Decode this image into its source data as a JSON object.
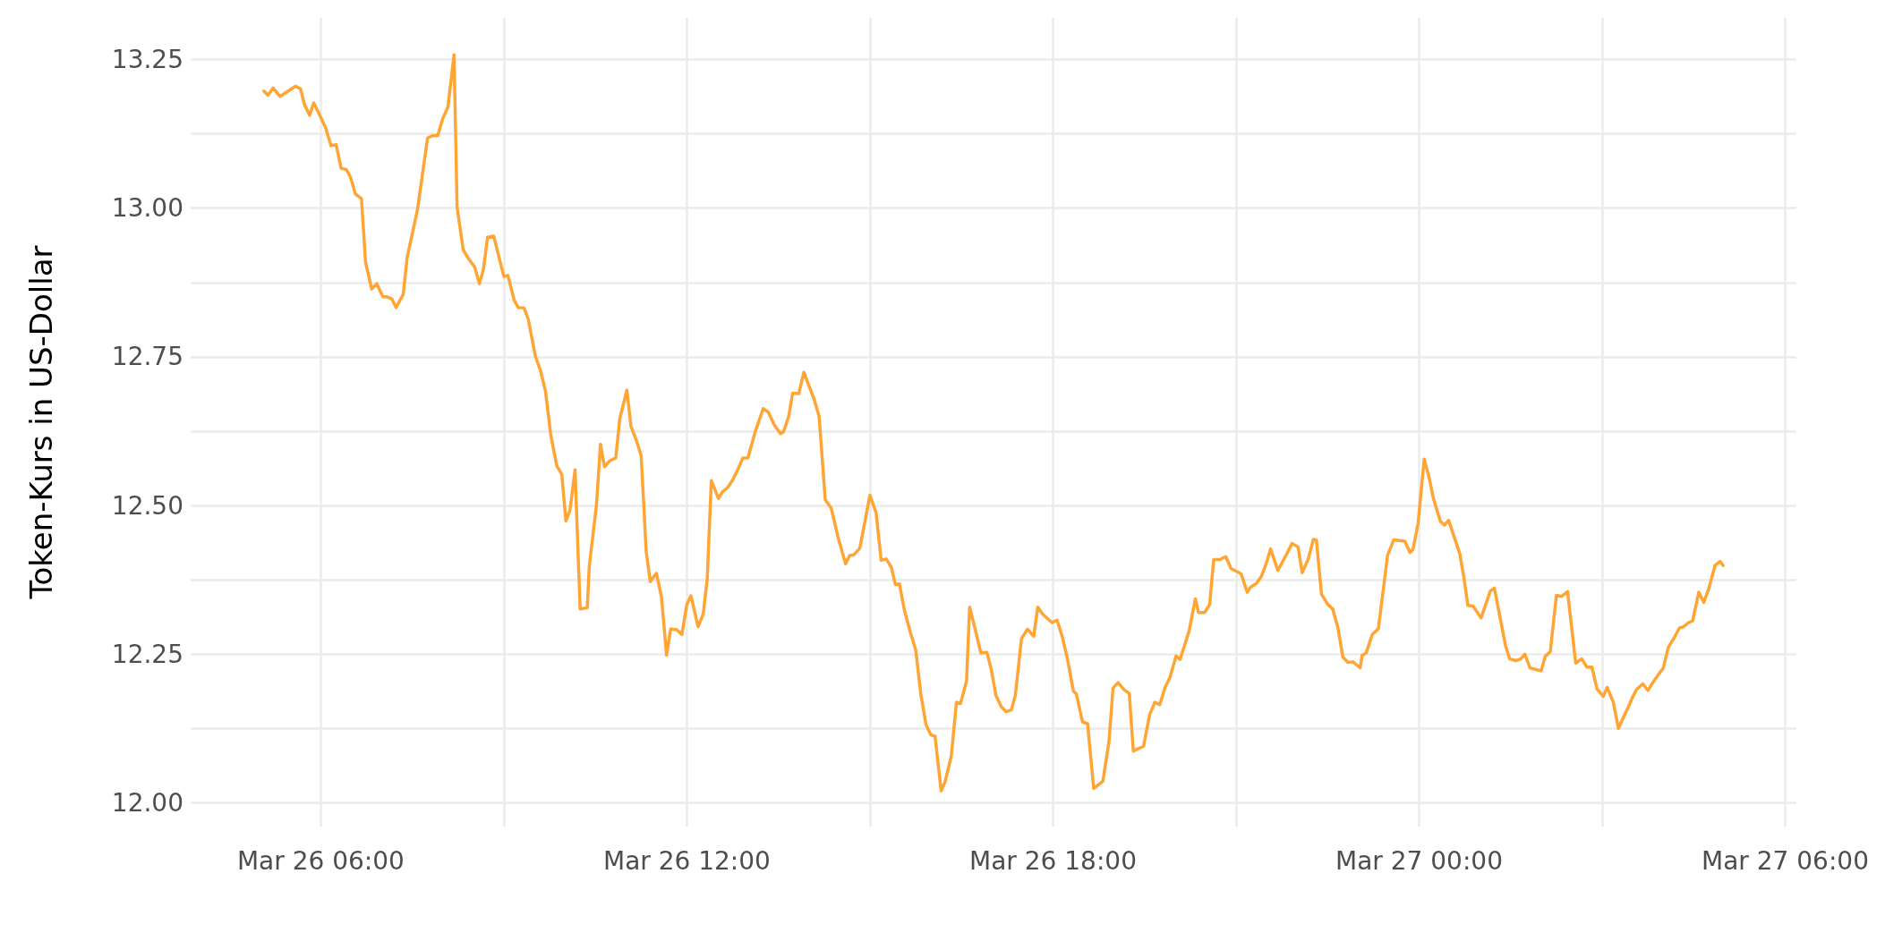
{
  "chart_data": {
    "type": "line",
    "ylabel": "Token-Kurs in US-Dollar",
    "color": "#ffa533",
    "marker": "none",
    "line_style": "solid",
    "grid": true,
    "xlim": [
      "--03-26T03:52",
      "--03-27T06:11"
    ],
    "ylim": [
      11.96,
      13.32
    ],
    "xticks": [
      {
        "value": "--03-26T06:00",
        "label": "Mar 26 06:00"
      },
      {
        "value": "--03-26T09:00",
        "label": null
      },
      {
        "value": "--03-26T12:00",
        "label": "Mar 26 12:00"
      },
      {
        "value": "--03-26T15:00",
        "label": null
      },
      {
        "value": "--03-26T18:00",
        "label": "Mar 26 18:00"
      },
      {
        "value": "--03-26T21:00",
        "label": null
      },
      {
        "value": "--03-27T00:00",
        "label": "Mar 27 00:00"
      },
      {
        "value": "--03-27T03:00",
        "label": null
      },
      {
        "value": "--03-27T06:00",
        "label": "Mar 27 06:00"
      }
    ],
    "yticks": [
      {
        "value": 12,
        "label": "12.00"
      },
      {
        "value": 12.125,
        "label": null
      },
      {
        "value": 12.25,
        "label": "12.25"
      },
      {
        "value": 12.375,
        "label": null
      },
      {
        "value": 12.5,
        "label": "12.50"
      },
      {
        "value": 12.625,
        "label": null
      },
      {
        "value": 12.75,
        "label": "12.75"
      },
      {
        "value": 12.875,
        "label": null
      },
      {
        "value": 13,
        "label": "13.00"
      },
      {
        "value": 13.125,
        "label": null
      },
      {
        "value": 13.25,
        "label": "13.25"
      }
    ],
    "x": [
      "--03-26T05:04",
      "--03-26T05:08",
      "--03-26T05:13",
      "--03-26T05:20",
      "--03-26T05:35",
      "--03-26T05:40",
      "--03-26T05:44",
      "--03-26T05:49",
      "--03-26T05:53",
      "--03-26T06:01",
      "--03-26T06:05",
      "--03-26T06:10",
      "--03-26T06:15",
      "--03-26T06:20",
      "--03-26T06:25",
      "--03-26T06:29",
      "--03-26T06:34",
      "--03-26T06:40",
      "--03-26T06:44",
      "--03-26T06:50",
      "--03-26T06:55",
      "--03-26T07:01",
      "--03-26T07:05",
      "--03-26T07:10",
      "--03-26T07:14",
      "--03-26T07:21",
      "--03-26T07:25",
      "--03-26T07:35",
      "--03-26T07:45",
      "--03-26T07:50",
      "--03-26T07:55",
      "--03-26T08:00",
      "--03-26T08:05",
      "--03-26T08:11",
      "--03-26T08:14",
      "--03-26T08:20",
      "--03-26T08:26",
      "--03-26T08:31",
      "--03-26T08:36",
      "--03-26T08:40",
      "--03-26T08:44",
      "--03-26T08:50",
      "--03-26T09:00",
      "--03-26T09:04",
      "--03-26T09:10",
      "--03-26T09:14",
      "--03-26T09:20",
      "--03-26T09:24",
      "--03-26T09:31",
      "--03-26T09:36",
      "--03-26T09:41",
      "--03-26T09:46",
      "--03-26T09:52",
      "--03-26T09:57",
      "--03-26T10:01",
      "--03-26T10:05",
      "--03-26T10:10",
      "--03-26T10:15",
      "--03-26T10:22",
      "--03-26T10:24",
      "--03-26T10:31",
      "--03-26T10:35",
      "--03-26T10:39",
      "--03-26T10:44",
      "--03-26T10:50",
      "--03-26T10:54",
      "--03-26T11:01",
      "--03-26T11:05",
      "--03-26T11:10",
      "--03-26T11:15",
      "--03-26T11:20",
      "--03-26T11:24",
      "--03-26T11:30",
      "--03-26T11:35",
      "--03-26T11:40",
      "--03-26T11:44",
      "--03-26T11:50",
      "--03-26T11:55",
      "--03-26T12:00",
      "--03-26T12:04",
      "--03-26T12:11",
      "--03-26T12:16",
      "--03-26T12:20",
      "--03-26T12:24",
      "--03-26T12:31",
      "--03-26T12:35",
      "--03-26T12:40",
      "--03-26T12:45",
      "--03-26T12:50",
      "--03-26T12:55",
      "--03-26T13:00",
      "--03-26T13:07",
      "--03-26T13:15",
      "--03-26T13:20",
      "--03-26T13:26",
      "--03-26T13:32",
      "--03-26T13:35",
      "--03-26T13:40",
      "--03-26T13:44",
      "--03-26T13:50",
      "--03-26T13:55",
      "--03-26T14:05",
      "--03-26T14:10",
      "--03-26T14:16",
      "--03-26T14:22",
      "--03-26T14:29",
      "--03-26T14:36",
      "--03-26T14:40",
      "--03-26T14:44",
      "--03-26T14:50",
      "--03-26T15:00",
      "--03-26T15:06",
      "--03-26T15:11",
      "--03-26T15:16",
      "--03-26T15:21",
      "--03-26T15:25",
      "--03-26T15:29",
      "--03-26T15:34",
      "--03-26T15:40",
      "--03-26T15:45",
      "--03-26T15:50",
      "--03-26T15:55",
      "--03-26T16:00",
      "--03-26T16:04",
      "--03-26T16:10",
      "--03-26T16:14",
      "--03-26T16:20",
      "--03-26T16:25",
      "--03-26T16:29",
      "--03-26T16:35",
      "--03-26T16:38",
      "--03-26T16:44",
      "--03-26T16:49",
      "--03-26T16:55",
      "--03-26T16:59",
      "--03-26T17:04",
      "--03-26T17:09",
      "--03-26T17:14",
      "--03-26T17:19",
      "--03-26T17:23",
      "--03-26T17:29",
      "--03-26T17:35",
      "--03-26T17:41",
      "--03-26T17:45",
      "--03-26T17:50",
      "--03-26T17:59",
      "--03-26T18:04",
      "--03-26T18:09",
      "--03-26T18:14",
      "--03-26T18:20",
      "--03-26T18:23",
      "--03-26T18:29",
      "--03-26T18:34",
      "--03-26T18:40",
      "--03-26T18:49",
      "--03-26T18:55",
      "--03-26T18:59",
      "--03-26T19:04",
      "--03-26T19:10",
      "--03-26T19:15",
      "--03-26T19:19",
      "--03-26T19:25",
      "--03-26T19:29",
      "--03-26T19:35",
      "--03-26T19:40",
      "--03-26T19:45",
      "--03-26T19:50",
      "--03-26T19:55",
      "--03-26T20:01",
      "--03-26T20:05",
      "--03-26T20:14",
      "--03-26T20:20",
      "--03-26T20:23",
      "--03-26T20:29",
      "--03-26T20:34",
      "--03-26T20:38",
      "--03-26T20:44",
      "--03-26T20:50",
      "--03-26T20:55",
      "--03-26T21:05",
      "--03-26T21:11",
      "--03-26T21:14",
      "--03-26T21:20",
      "--03-26T21:25",
      "--03-26T21:30",
      "--03-26T21:34",
      "--03-26T21:41",
      "--03-26T21:45",
      "--03-26T21:50",
      "--03-26T21:55",
      "--03-26T22:01",
      "--03-26T22:05",
      "--03-26T22:11",
      "--03-26T22:16",
      "--03-26T22:19",
      "--03-26T22:24",
      "--03-26T22:30",
      "--03-26T22:35",
      "--03-26T22:40",
      "--03-26T22:45",
      "--03-26T22:50",
      "--03-26T22:55",
      "--03-26T23:02",
      "--03-26T23:04",
      "--03-26T23:08",
      "--03-26T23:14",
      "--03-26T23:20",
      "--03-26T23:29",
      "--03-26T23:35",
      "--03-26T23:46",
      "--03-26T23:51",
      "--03-26T23:54",
      "--03-26T23:59",
      "--03-27T00:05",
      "--03-27T00:10",
      "--03-27T00:14",
      "--03-27T00:21",
      "--03-27T00:25",
      "--03-27T00:29",
      "--03-27T00:40",
      "--03-27T00:44",
      "--03-27T00:48",
      "--03-27T00:53",
      "--03-27T01:01",
      "--03-27T01:10",
      "--03-27T01:14",
      "--03-27T01:25",
      "--03-27T01:29",
      "--03-27T01:35",
      "--03-27T01:40",
      "--03-27T01:44",
      "--03-27T01:49",
      "--03-27T01:55",
      "--03-27T02:00",
      "--03-27T02:04",
      "--03-27T02:09",
      "--03-27T02:15",
      "--03-27T02:20",
      "--03-27T02:26",
      "--03-27T02:34",
      "--03-27T02:40",
      "--03-27T02:45",
      "--03-27T02:50",
      "--03-27T02:55",
      "--03-27T03:01",
      "--03-27T03:05",
      "--03-27T03:11",
      "--03-27T03:16",
      "--03-27T03:21",
      "--03-27T03:26",
      "--03-27T03:30",
      "--03-27T03:34",
      "--03-27T03:40",
      "--03-27T03:45",
      "--03-27T03:49",
      "--03-27T03:55",
      "--03-27T04:00",
      "--03-27T04:05",
      "--03-27T04:11",
      "--03-27T04:16",
      "--03-27T04:20",
      "--03-27T04:25",
      "--03-27T04:29",
      "--03-27T04:35",
      "--03-27T04:40",
      "--03-27T04:45",
      "--03-27T04:51",
      "--03-27T04:56",
      "--03-27T04:59"
    ],
    "values": [
      13.197,
      13.19,
      13.202,
      13.188,
      13.205,
      13.201,
      13.174,
      13.156,
      13.177,
      13.149,
      13.134,
      13.105,
      13.107,
      13.067,
      13.065,
      13.053,
      13.024,
      13.016,
      12.909,
      12.864,
      12.873,
      12.851,
      12.851,
      12.847,
      12.833,
      12.855,
      12.918,
      12.997,
      13.118,
      13.122,
      13.122,
      13.151,
      13.17,
      13.258,
      13.002,
      12.93,
      12.913,
      12.902,
      12.873,
      12.898,
      12.951,
      12.953,
      12.885,
      12.887,
      12.846,
      12.833,
      12.832,
      12.813,
      12.751,
      12.727,
      12.692,
      12.62,
      12.567,
      12.552,
      12.474,
      12.492,
      12.56,
      12.326,
      12.328,
      12.398,
      12.5,
      12.603,
      12.565,
      12.575,
      12.58,
      12.646,
      12.694,
      12.633,
      12.611,
      12.584,
      12.422,
      12.372,
      12.386,
      12.346,
      12.248,
      12.292,
      12.291,
      12.283,
      12.334,
      12.348,
      12.296,
      12.317,
      12.377,
      12.542,
      12.512,
      12.523,
      12.53,
      12.543,
      12.56,
      12.58,
      12.58,
      12.623,
      12.663,
      12.657,
      12.635,
      12.621,
      12.624,
      12.649,
      12.689,
      12.688,
      12.724,
      12.679,
      12.65,
      12.51,
      12.495,
      12.444,
      12.402,
      12.416,
      12.417,
      12.428,
      12.517,
      12.488,
      12.408,
      12.41,
      12.396,
      12.367,
      12.368,
      12.323,
      12.285,
      12.257,
      12.183,
      12.132,
      12.114,
      12.112,
      12.02,
      12.036,
      12.079,
      12.169,
      12.167,
      12.205,
      12.329,
      12.288,
      12.252,
      12.253,
      12.226,
      12.18,
      12.162,
      12.153,
      12.156,
      12.181,
      12.276,
      12.292,
      12.28,
      12.329,
      12.317,
      12.303,
      12.307,
      12.28,
      12.244,
      12.188,
      12.183,
      12.136,
      12.133,
      12.024,
      12.036,
      12.102,
      12.193,
      12.202,
      12.19,
      12.184,
      12.087,
      12.092,
      12.095,
      12.148,
      12.169,
      12.165,
      12.193,
      12.211,
      12.247,
      12.241,
      12.29,
      12.343,
      12.32,
      12.32,
      12.333,
      12.409,
      12.409,
      12.414,
      12.394,
      12.385,
      12.354,
      12.362,
      12.369,
      12.381,
      12.404,
      12.427,
      12.391,
      12.403,
      12.419,
      12.436,
      12.43,
      12.387,
      12.41,
      12.443,
      12.442,
      12.351,
      12.334,
      12.326,
      12.296,
      12.245,
      12.236,
      12.237,
      12.227,
      12.248,
      12.252,
      12.283,
      12.293,
      12.416,
      12.442,
      12.44,
      12.421,
      12.426,
      12.47,
      12.578,
      12.546,
      12.512,
      12.473,
      12.467,
      12.475,
      12.419,
      12.379,
      12.332,
      12.331,
      12.311,
      12.356,
      12.361,
      12.264,
      12.242,
      12.239,
      12.242,
      12.25,
      12.227,
      12.224,
      12.222,
      12.246,
      12.254,
      12.349,
      12.347,
      12.355,
      12.235,
      12.242,
      12.228,
      12.228,
      12.191,
      12.179,
      12.194,
      12.169,
      12.125,
      12.144,
      12.162,
      12.178,
      12.191,
      12.2,
      12.189,
      12.2,
      12.215,
      12.226,
      12.261,
      12.278,
      12.294,
      12.296,
      12.303,
      12.306,
      12.354,
      12.337,
      12.361,
      12.399,
      12.406,
      12.399
    ]
  }
}
